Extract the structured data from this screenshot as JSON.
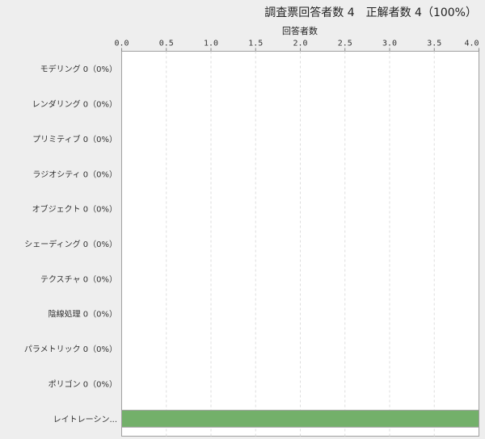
{
  "chart_data": {
    "type": "bar",
    "orientation": "horizontal",
    "title": "調査票回答者数 4　正解者数 4（100%）",
    "xlabel": "回答者数",
    "ylabel": "",
    "xlim": [
      0,
      4.0
    ],
    "xticks": [
      "0.0",
      "0.5",
      "1.0",
      "1.5",
      "2.0",
      "2.5",
      "3.0",
      "3.5",
      "4.0"
    ],
    "grid": true,
    "categories": [
      "モデリング 0（0%）",
      "レンダリング 0（0%）",
      "プリミティブ 0（0%）",
      "ラジオシティ 0（0%）",
      "オブジェクト 0（0%）",
      "シェーディング 0（0%）",
      "テクスチャ 0（0%）",
      "陰線処理 0（0%）",
      "パラメトリック 0（0%）",
      "ポリゴン 0（0%）",
      "レイトレーシン..."
    ],
    "values": [
      0,
      0,
      0,
      0,
      0,
      0,
      0,
      0,
      0,
      0,
      4
    ],
    "colors": {
      "bar": "#73b06a",
      "background": "#eeeeee",
      "plot": "#ffffff"
    }
  }
}
